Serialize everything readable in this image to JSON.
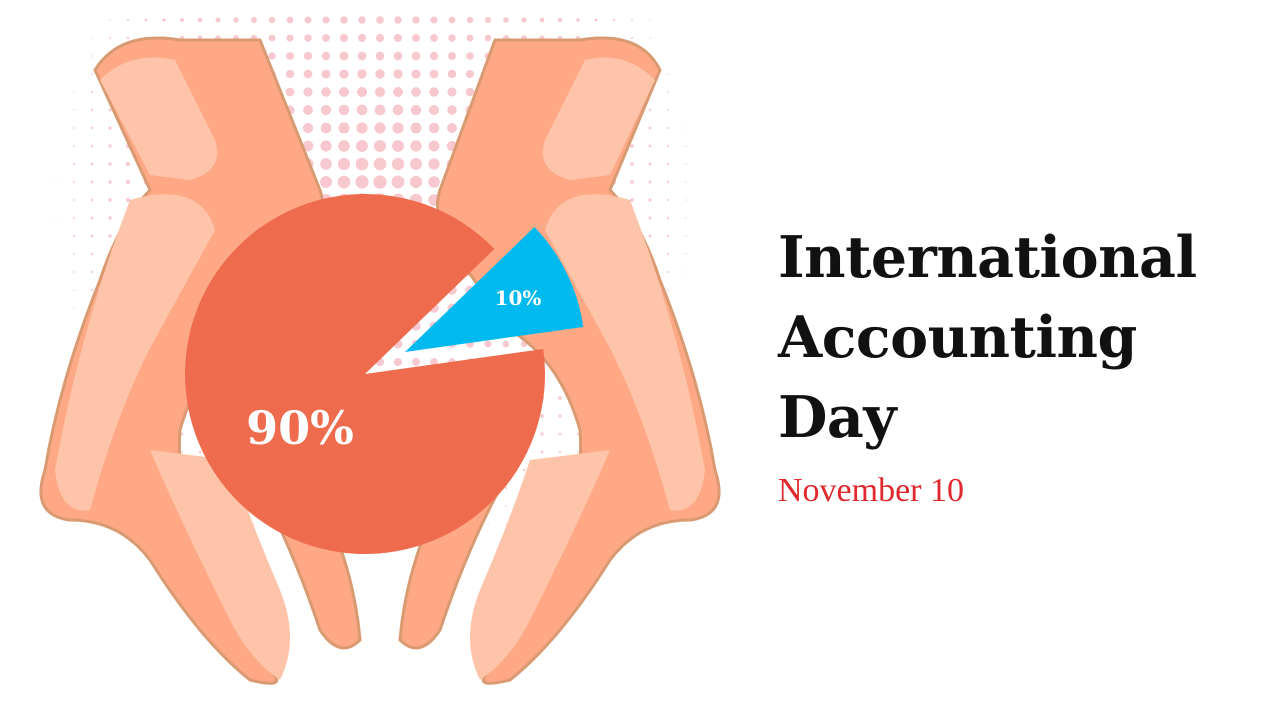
{
  "slide": {
    "title_lines": [
      "International",
      "Accounting",
      "Day"
    ],
    "subtitle": "November 10"
  },
  "colors": {
    "main_slice": "#ef6b4d",
    "highlight_slice": "#00b9ef",
    "hand_light": "#fdc4a9",
    "hand_mid": "#fea886",
    "hand_outline": "#d99a72",
    "halftone": "#f7c9cf",
    "subtitle": "#e0282e"
  },
  "chart_data": {
    "type": "pie",
    "categories": [
      "90%",
      "10%"
    ],
    "values": [
      90,
      10
    ],
    "labels": [
      "90%",
      "10%"
    ],
    "exploded": "10%"
  }
}
